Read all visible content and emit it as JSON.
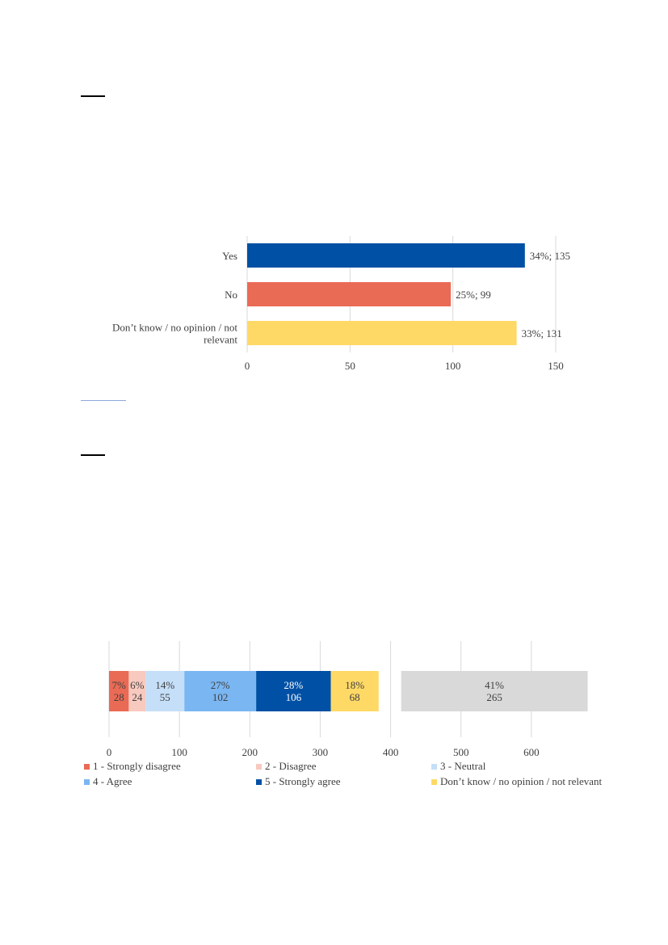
{
  "page": {
    "rule_colors": [
      "#000000",
      "#8EA9DB",
      "#000000"
    ]
  },
  "chart_data": [
    {
      "type": "bar",
      "orientation": "horizontal",
      "categories": [
        "Yes",
        "No",
        "Don’t know / no opinion / not relevant"
      ],
      "category_lines": [
        [
          "Yes"
        ],
        [
          "No"
        ],
        [
          "Don’t know / no opinion / not",
          "relevant"
        ]
      ],
      "values": [
        135,
        99,
        131
      ],
      "data_labels": [
        "34%; 135",
        "25%; 99",
        "33%; 131"
      ],
      "colors": [
        "#0050A5",
        "#E96B55",
        "#FFD966"
      ],
      "xlim": [
        0,
        150
      ],
      "xticks": [
        0,
        50,
        100,
        150
      ],
      "xtick_labels": [
        "0",
        "50",
        "100",
        "150"
      ],
      "grid": true,
      "title": "",
      "xlabel": "",
      "ylabel": ""
    },
    {
      "type": "bar",
      "orientation": "horizontal",
      "stacked": true,
      "series": [
        {
          "name": "1 - Strongly disagree",
          "value": 28,
          "pct": "7%",
          "color": "#E96B55"
        },
        {
          "name": "2 - Disagree",
          "value": 24,
          "pct": "6%",
          "color": "#F8C9BE"
        },
        {
          "name": "3 - Neutral",
          "value": 55,
          "pct": "14%",
          "color": "#C5DFF8"
        },
        {
          "name": "4 - Agree",
          "value": 102,
          "pct": "27%",
          "color": "#7AB6F2"
        },
        {
          "name": "5 - Strongly agree",
          "value": 106,
          "pct": "28%",
          "color": "#0050A5"
        },
        {
          "name": "Don’t know / no opinion / not relevant",
          "value": 68,
          "pct": "18%",
          "color": "#FFD966"
        }
      ],
      "separate_bar": {
        "value": 265,
        "pct": "41%",
        "start": 415,
        "color": "#D9D9D9"
      },
      "xlim": [
        0,
        700
      ],
      "xticks": [
        0,
        100,
        200,
        300,
        400,
        500,
        600
      ],
      "xtick_labels": [
        "0",
        "100",
        "200",
        "300",
        "400",
        "500",
        "600"
      ],
      "grid": true,
      "legend_position": "bottom",
      "title": "",
      "xlabel": "",
      "ylabel": ""
    }
  ]
}
